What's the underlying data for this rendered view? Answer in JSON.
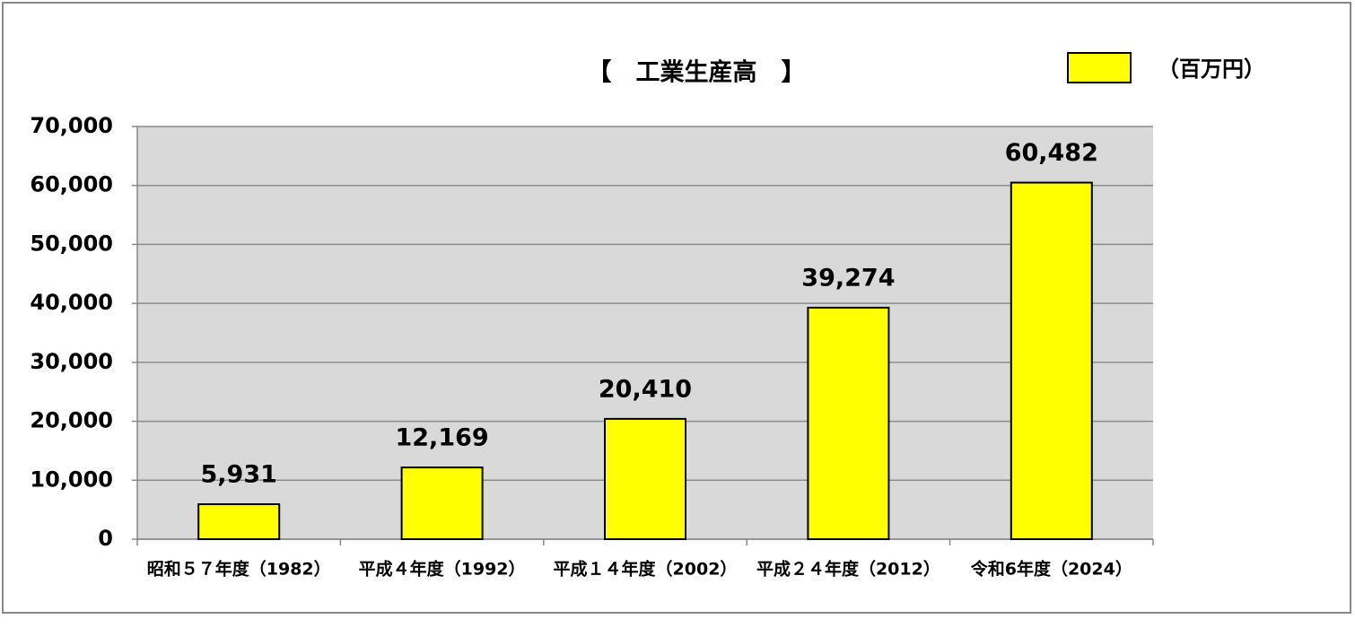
{
  "chart_data": {
    "type": "bar",
    "title": "【　工業生産高　】",
    "categories": [
      "昭和５７年度（1982）",
      "平成４年度（1992）",
      "平成１４年度（2002）",
      "平成２４年度（2012）",
      "令和6年度（2024）"
    ],
    "series": [
      {
        "name": "（百万円）",
        "color": "#ffff00",
        "values": [
          5931,
          12169,
          20410,
          39274,
          60482
        ],
        "value_labels": [
          "5,931",
          "12,169",
          "20,410",
          "39,274",
          "60,482"
        ]
      }
    ],
    "ylim": [
      0,
      70000
    ],
    "yticks": [
      0,
      {
        "value": 10000,
        "label": "10,000"
      },
      {
        "value": 20000,
        "label": "20,000"
      },
      {
        "value": 30000,
        "label": "30,000"
      },
      {
        "value": 40000,
        "label": "40,000"
      },
      {
        "value": 50000,
        "label": "50,000"
      },
      {
        "value": 60000,
        "label": "60,000"
      },
      {
        "value": 70000,
        "label": "70,000"
      }
    ],
    "grid": true,
    "legend": "top-right"
  }
}
